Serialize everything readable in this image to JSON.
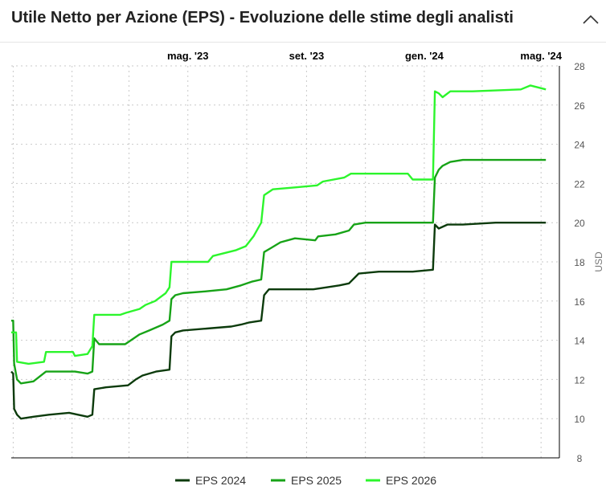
{
  "header": {
    "title": "Utile Netto per Azione (EPS) - Evoluzione delle stime degli analisti"
  },
  "colors": {
    "eps_2024": "#0c3b0c",
    "eps_2025": "#17a317",
    "eps_2026": "#2cf52c",
    "grid": "#c9c9c9",
    "axis": "#000000"
  },
  "icons": {
    "collapse": "chevron-up-icon"
  },
  "chart_data": {
    "type": "line",
    "title": "Utile Netto per Azione (EPS) - Evoluzione delle stime degli analisti",
    "ylabel": "USD",
    "xlabel": "",
    "xlim": [
      "2022-10-30",
      "2024-05-20"
    ],
    "ylim": [
      8,
      28
    ],
    "yticks": [
      8,
      10,
      12,
      14,
      16,
      18,
      20,
      22,
      24,
      26,
      28
    ],
    "x_axis_position": "top",
    "y_axis_position": "right",
    "grid": true,
    "legend": "bottom",
    "xticks": [
      {
        "date": "2023-05-01",
        "label": "mag. '23"
      },
      {
        "date": "2023-09-01",
        "label": "set. '23"
      },
      {
        "date": "2024-01-01",
        "label": "gen. '24"
      },
      {
        "date": "2024-05-01",
        "label": "mag. '24"
      }
    ],
    "series": [
      {
        "name": "EPS 2024",
        "color": "#0c3b0c",
        "points": [
          [
            "2022-10-30",
            12.4
          ],
          [
            "2022-11-01",
            12.3
          ],
          [
            "2022-11-02",
            10.5
          ],
          [
            "2022-11-05",
            10.2
          ],
          [
            "2022-11-09",
            10.0
          ],
          [
            "2022-11-22",
            10.1
          ],
          [
            "2022-12-08",
            10.2
          ],
          [
            "2022-12-29",
            10.3
          ],
          [
            "2023-01-17",
            10.1
          ],
          [
            "2023-01-22",
            10.2
          ],
          [
            "2023-01-24",
            11.5
          ],
          [
            "2023-02-05",
            11.6
          ],
          [
            "2023-02-28",
            11.7
          ],
          [
            "2023-03-08",
            12.0
          ],
          [
            "2023-03-15",
            12.2
          ],
          [
            "2023-03-29",
            12.4
          ],
          [
            "2023-04-12",
            12.5
          ],
          [
            "2023-04-14",
            14.2
          ],
          [
            "2023-04-18",
            14.4
          ],
          [
            "2023-04-26",
            14.5
          ],
          [
            "2023-05-21",
            14.6
          ],
          [
            "2023-06-15",
            14.7
          ],
          [
            "2023-06-25",
            14.8
          ],
          [
            "2023-07-03",
            14.9
          ],
          [
            "2023-07-16",
            15.0
          ],
          [
            "2023-07-19",
            16.3
          ],
          [
            "2023-07-24",
            16.6
          ],
          [
            "2023-08-05",
            16.6
          ],
          [
            "2023-09-08",
            16.6
          ],
          [
            "2023-09-22",
            16.7
          ],
          [
            "2023-10-05",
            16.8
          ],
          [
            "2023-10-15",
            16.9
          ],
          [
            "2023-10-25",
            17.4
          ],
          [
            "2023-11-15",
            17.5
          ],
          [
            "2023-12-20",
            17.5
          ],
          [
            "2024-01-10",
            17.6
          ],
          [
            "2024-01-12",
            19.9
          ],
          [
            "2024-01-16",
            19.7
          ],
          [
            "2024-01-25",
            19.9
          ],
          [
            "2024-02-10",
            19.9
          ],
          [
            "2024-03-15",
            20.0
          ],
          [
            "2024-04-20",
            20.0
          ],
          [
            "2024-05-06",
            20.0
          ]
        ]
      },
      {
        "name": "EPS 2025",
        "color": "#17a317",
        "points": [
          [
            "2022-10-30",
            15.0
          ],
          [
            "2022-11-01",
            15.0
          ],
          [
            "2022-11-02",
            12.8
          ],
          [
            "2022-11-05",
            12.0
          ],
          [
            "2022-11-09",
            11.8
          ],
          [
            "2022-11-22",
            11.9
          ],
          [
            "2022-12-05",
            12.4
          ],
          [
            "2023-01-04",
            12.4
          ],
          [
            "2023-01-17",
            12.3
          ],
          [
            "2023-01-22",
            12.4
          ],
          [
            "2023-01-24",
            14.1
          ],
          [
            "2023-01-29",
            13.8
          ],
          [
            "2023-02-25",
            13.8
          ],
          [
            "2023-03-03",
            14.0
          ],
          [
            "2023-03-12",
            14.3
          ],
          [
            "2023-03-22",
            14.5
          ],
          [
            "2023-04-05",
            14.8
          ],
          [
            "2023-04-12",
            15.0
          ],
          [
            "2023-04-14",
            16.1
          ],
          [
            "2023-04-18",
            16.3
          ],
          [
            "2023-04-26",
            16.4
          ],
          [
            "2023-05-21",
            16.5
          ],
          [
            "2023-06-10",
            16.6
          ],
          [
            "2023-06-25",
            16.8
          ],
          [
            "2023-07-07",
            17.0
          ],
          [
            "2023-07-16",
            17.1
          ],
          [
            "2023-07-19",
            18.5
          ],
          [
            "2023-07-26",
            18.7
          ],
          [
            "2023-08-05",
            19.0
          ],
          [
            "2023-08-20",
            19.2
          ],
          [
            "2023-09-10",
            19.1
          ],
          [
            "2023-09-13",
            19.3
          ],
          [
            "2023-10-01",
            19.4
          ],
          [
            "2023-10-15",
            19.6
          ],
          [
            "2023-10-20",
            19.9
          ],
          [
            "2023-11-01",
            20.0
          ],
          [
            "2023-12-20",
            20.0
          ],
          [
            "2024-01-10",
            20.0
          ],
          [
            "2024-01-12",
            22.3
          ],
          [
            "2024-01-16",
            22.7
          ],
          [
            "2024-01-20",
            22.9
          ],
          [
            "2024-01-28",
            23.1
          ],
          [
            "2024-02-10",
            23.2
          ],
          [
            "2024-05-06",
            23.2
          ]
        ]
      },
      {
        "name": "EPS 2026",
        "color": "#2cf52c",
        "points": [
          [
            "2022-10-30",
            14.4
          ],
          [
            "2022-11-04",
            14.4
          ],
          [
            "2022-11-05",
            12.9
          ],
          [
            "2022-11-17",
            12.8
          ],
          [
            "2022-12-03",
            12.9
          ],
          [
            "2022-12-05",
            13.4
          ],
          [
            "2023-01-02",
            13.4
          ],
          [
            "2023-01-04",
            13.2
          ],
          [
            "2023-01-17",
            13.3
          ],
          [
            "2023-01-22",
            13.7
          ],
          [
            "2023-01-24",
            15.3
          ],
          [
            "2023-02-20",
            15.3
          ],
          [
            "2023-02-26",
            15.4
          ],
          [
            "2023-03-12",
            15.6
          ],
          [
            "2023-03-18",
            15.8
          ],
          [
            "2023-03-28",
            16.0
          ],
          [
            "2023-04-08",
            16.4
          ],
          [
            "2023-04-12",
            16.7
          ],
          [
            "2023-04-14",
            18.0
          ],
          [
            "2023-05-22",
            18.0
          ],
          [
            "2023-05-27",
            18.3
          ],
          [
            "2023-06-20",
            18.6
          ],
          [
            "2023-06-30",
            18.8
          ],
          [
            "2023-07-08",
            19.3
          ],
          [
            "2023-07-16",
            20.0
          ],
          [
            "2023-07-19",
            21.4
          ],
          [
            "2023-07-28",
            21.7
          ],
          [
            "2023-08-20",
            21.8
          ],
          [
            "2023-09-12",
            21.9
          ],
          [
            "2023-09-18",
            22.1
          ],
          [
            "2023-10-10",
            22.3
          ],
          [
            "2023-10-17",
            22.5
          ],
          [
            "2023-11-25",
            22.5
          ],
          [
            "2023-12-15",
            22.5
          ],
          [
            "2023-12-20",
            22.2
          ],
          [
            "2024-01-10",
            22.2
          ],
          [
            "2024-01-12",
            26.7
          ],
          [
            "2024-01-16",
            26.6
          ],
          [
            "2024-01-20",
            26.4
          ],
          [
            "2024-01-28",
            26.7
          ],
          [
            "2024-02-20",
            26.7
          ],
          [
            "2024-04-10",
            26.8
          ],
          [
            "2024-04-20",
            27.0
          ],
          [
            "2024-05-06",
            26.8
          ]
        ]
      }
    ]
  }
}
